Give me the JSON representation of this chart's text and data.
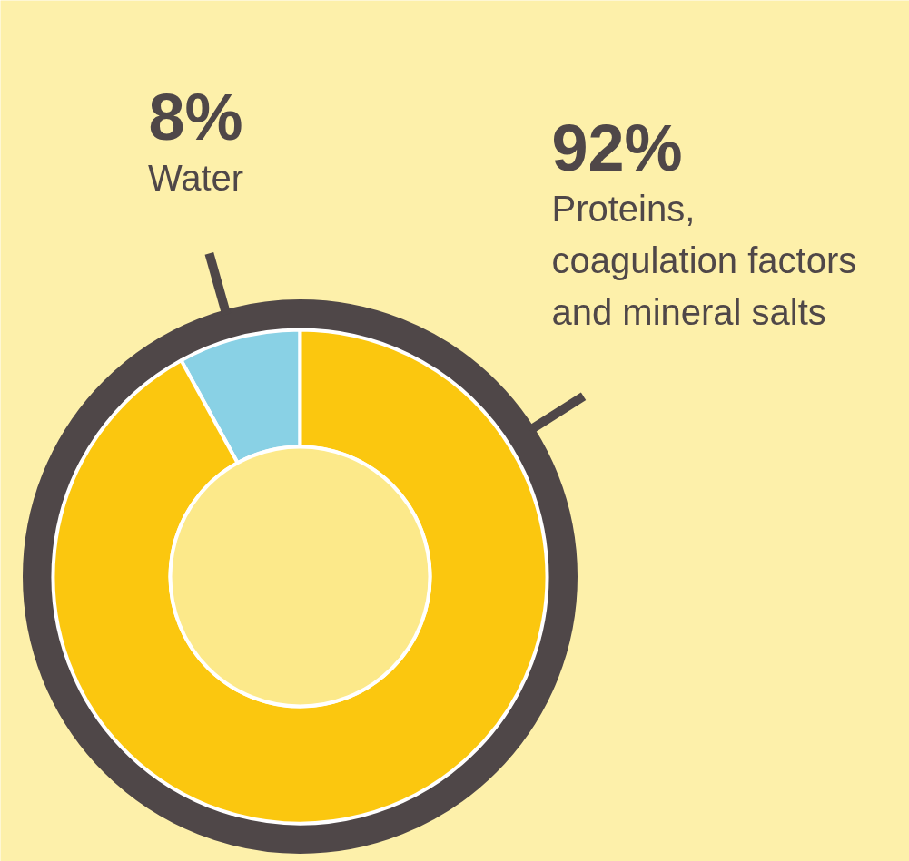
{
  "chart_data": {
    "type": "donut",
    "categories": [
      "Water",
      "Proteins,\ncoagulation factors\nand mineral salts"
    ],
    "values": [
      8,
      92
    ],
    "colors": [
      "#89d1e5",
      "#fbc70f"
    ],
    "value_labels": [
      "8%",
      "92%"
    ]
  }
}
